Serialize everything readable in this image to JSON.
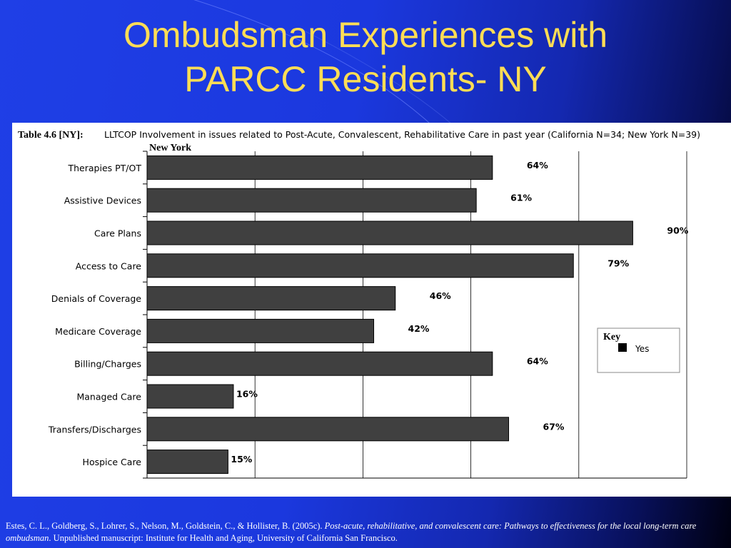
{
  "slide": {
    "title_line1": "Ombudsman Experiences with",
    "title_line2": "PARCC Residents- NY"
  },
  "citation": {
    "authors": "Estes, C. L., Goldberg, S., Lohrer, S., Nelson, M., Goldstein, C., & Hollister, B. (2005c). ",
    "work_title": "Post-acute, rehabilitative, and convalescent care: Pathways to effectiveness for the local long-term care ombudsman",
    "publisher": ". Unpublished manuscript: Institute for Health and Aging, University of California San Francisco."
  },
  "chart_data": {
    "type": "bar",
    "orientation": "horizontal",
    "table_label": "Table 4.6 [NY]:",
    "title": "LLTCOP Involvement in issues related to Post-Acute, Convalescent, Rehabilitative Care in past year (California N=34; New York N=39)",
    "subtitle": "New York",
    "categories": [
      "Therapies PT/OT",
      "Assistive Devices",
      "Care Plans",
      "Access to Care",
      "Denials of Coverage",
      "Medicare Coverage",
      "Billing/Charges",
      "Managed Care",
      "Transfers/Discharges",
      "Hospice Care"
    ],
    "values": [
      64,
      61,
      90,
      79,
      46,
      42,
      64,
      16,
      67,
      15
    ],
    "value_labels": [
      "64%",
      "61%",
      "90%",
      "79%",
      "46%",
      "42%",
      "64%",
      "16%",
      "67%",
      "15%"
    ],
    "x_ticks": [
      "0%",
      "20%",
      "40%",
      "60%",
      "80%",
      "100%"
    ],
    "xlim": [
      0,
      100
    ],
    "grid": true,
    "legend": {
      "title": "Key",
      "entries": [
        "Yes"
      ],
      "placement": "right"
    },
    "bar_color": "#404040"
  }
}
